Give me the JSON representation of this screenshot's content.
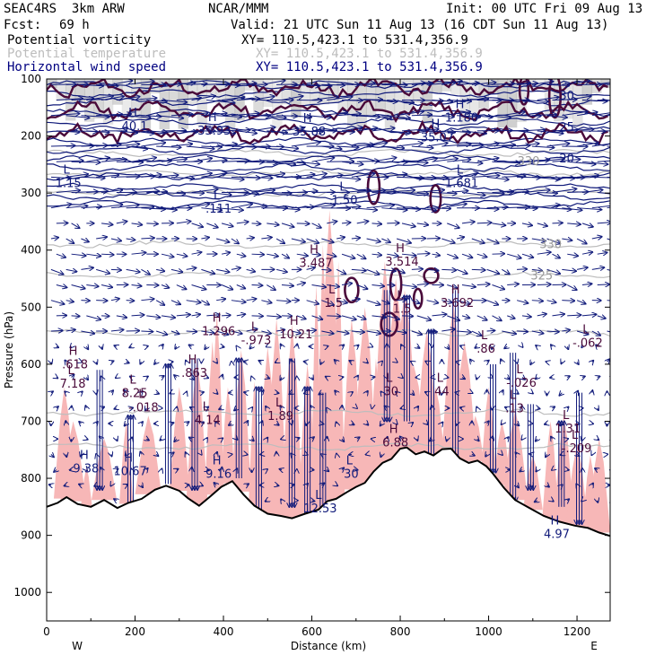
{
  "header": {
    "model": "SEAC4RS  3km ARW",
    "org": "NCAR/MMM",
    "init": "Init: 00 UTC Fri 09 Aug 13",
    "fcst_label": "Fcst:",
    "fcst_value": "69 h",
    "valid": "Valid: 21 UTC Sun 11 Aug 13 (16 CDT Sun 11 Aug 13)"
  },
  "legend": [
    {
      "field": "Potential vorticity",
      "xy": "XY= 110.5,423.1 to 531.4,356.9",
      "color": "#000000"
    },
    {
      "field": "Potential temperature",
      "xy": "XY= 110.5,423.1 to 531.4,356.9",
      "color": "#bdbdbd"
    },
    {
      "field": "Horizontal wind speed",
      "xy": "XY= 110.5,423.1 to 531.4,356.9",
      "color": "#000080"
    }
  ],
  "colors": {
    "pv": "#4a0a3a",
    "theta": "#bdbdbd",
    "wind": "#101a7a",
    "pv_fill": "#f7b7b7",
    "terrain": "#000000"
  },
  "chart_data": {
    "type": "cross-section",
    "xlabel": "Distance (km)",
    "ylabel": "Pressure (hPa)",
    "xlim": [
      0,
      1275
    ],
    "ylim": [
      1050,
      100
    ],
    "x_ticks": [
      0,
      200,
      400,
      600,
      800,
      1000,
      1200
    ],
    "y_ticks": [
      100,
      200,
      300,
      400,
      500,
      600,
      700,
      800,
      900,
      1000
    ],
    "x_end_labels": {
      "left": "W",
      "right": "E"
    },
    "terrain_surface_hPa": [
      [
        0,
        850
      ],
      [
        25,
        843
      ],
      [
        45,
        833
      ],
      [
        70,
        845
      ],
      [
        100,
        850
      ],
      [
        130,
        838
      ],
      [
        160,
        852
      ],
      [
        185,
        843
      ],
      [
        215,
        836
      ],
      [
        245,
        820
      ],
      [
        270,
        813
      ],
      [
        300,
        822
      ],
      [
        320,
        835
      ],
      [
        345,
        848
      ],
      [
        370,
        832
      ],
      [
        395,
        815
      ],
      [
        420,
        805
      ],
      [
        445,
        828
      ],
      [
        470,
        848
      ],
      [
        500,
        862
      ],
      [
        530,
        866
      ],
      [
        555,
        870
      ],
      [
        585,
        862
      ],
      [
        615,
        855
      ],
      [
        635,
        840
      ],
      [
        655,
        836
      ],
      [
        680,
        824
      ],
      [
        700,
        815
      ],
      [
        720,
        808
      ],
      [
        740,
        788
      ],
      [
        760,
        773
      ],
      [
        780,
        766
      ],
      [
        800,
        748
      ],
      [
        815,
        746
      ],
      [
        835,
        758
      ],
      [
        855,
        753
      ],
      [
        875,
        760
      ],
      [
        895,
        749
      ],
      [
        915,
        748
      ],
      [
        935,
        765
      ],
      [
        955,
        773
      ],
      [
        975,
        769
      ],
      [
        995,
        779
      ],
      [
        1010,
        792
      ],
      [
        1035,
        817
      ],
      [
        1060,
        838
      ],
      [
        1090,
        851
      ],
      [
        1125,
        866
      ],
      [
        1160,
        876
      ],
      [
        1195,
        883
      ],
      [
        1225,
        887
      ],
      [
        1250,
        895
      ],
      [
        1275,
        901
      ]
    ],
    "theta_contours": [
      {
        "label": "330",
        "label_x_km": 1115,
        "pressure_hPa": 390
      },
      {
        "label": "325",
        "label_x_km": 1095,
        "pressure_hPa": 445
      },
      {
        "label": "330",
        "label_x_km": 1065,
        "pressure_hPa": 245
      }
    ],
    "wind_speed_labels": [
      "30",
      "25",
      "20"
    ],
    "pv_fill_peaks": [
      [
        40,
        640
      ],
      [
        60,
        700
      ],
      [
        90,
        780
      ],
      [
        130,
        730
      ],
      [
        180,
        700
      ],
      [
        230,
        690
      ],
      [
        300,
        640
      ],
      [
        340,
        590
      ],
      [
        375,
        560
      ],
      [
        385,
        510
      ],
      [
        410,
        640
      ],
      [
        440,
        575
      ],
      [
        470,
        630
      ],
      [
        500,
        570
      ],
      [
        520,
        520
      ],
      [
        555,
        530
      ],
      [
        590,
        600
      ],
      [
        610,
        460
      ],
      [
        625,
        390
      ],
      [
        640,
        330
      ],
      [
        660,
        420
      ],
      [
        690,
        520
      ],
      [
        720,
        500
      ],
      [
        745,
        590
      ],
      [
        765,
        420
      ],
      [
        790,
        450
      ],
      [
        810,
        470
      ],
      [
        830,
        600
      ],
      [
        860,
        540
      ],
      [
        880,
        640
      ],
      [
        910,
        660
      ],
      [
        920,
        490
      ],
      [
        945,
        560
      ],
      [
        970,
        690
      ],
      [
        1000,
        640
      ],
      [
        1030,
        700
      ],
      [
        1060,
        680
      ],
      [
        1100,
        760
      ],
      [
        1140,
        700
      ],
      [
        1170,
        690
      ],
      [
        1200,
        740
      ],
      [
        1230,
        760
      ],
      [
        1250,
        730
      ]
    ],
    "highs_lows": [
      {
        "type": "H",
        "value": ".618",
        "x_km": 60,
        "p_hPa": 598
      },
      {
        "type": "L",
        "value": "7.18",
        "x_km": 55,
        "p_hPa": 632
      },
      {
        "type": "H",
        "value": "9.38",
        "x_km": 85,
        "p_hPa": 780
      },
      {
        "type": "L",
        "value": "8.25",
        "x_km": 195,
        "p_hPa": 648
      },
      {
        "type": "L",
        "value": "-.018",
        "x_km": 215,
        "p_hPa": 673
      },
      {
        "type": "H",
        "value": "10.67",
        "x_km": 185,
        "p_hPa": 785
      },
      {
        "type": "H",
        "value": ".863",
        "x_km": 330,
        "p_hPa": 613
      },
      {
        "type": "L",
        "value": "4.14",
        "x_km": 360,
        "p_hPa": 695
      },
      {
        "type": "H",
        "value": "9.16",
        "x_km": 385,
        "p_hPa": 790
      },
      {
        "type": "H",
        "value": "1.296",
        "x_km": 385,
        "p_hPa": 540
      },
      {
        "type": "L",
        "value": "-.973",
        "x_km": 470,
        "p_hPa": 555
      },
      {
        "type": "H",
        "value": "10.21",
        "x_km": 560,
        "p_hPa": 545
      },
      {
        "type": "L",
        "value": "1.89",
        "x_km": 525,
        "p_hPa": 688
      },
      {
        "type": "L",
        "value": "12.53",
        "x_km": 615,
        "p_hPa": 850
      },
      {
        "type": "H",
        "value": "3.487",
        "x_km": 605,
        "p_hPa": 420
      },
      {
        "type": "L",
        "value": "1.5",
        "x_km": 645,
        "p_hPa": 490
      },
      {
        "type": "L",
        "value": "1.50",
        "x_km": 670,
        "p_hPa": 310
      },
      {
        "type": "L",
        "value": ".111",
        "x_km": 385,
        "p_hPa": 325
      },
      {
        "type": "L",
        "value": "30",
        "x_km": 685,
        "p_hPa": 790
      },
      {
        "type": "H",
        "value": "3.514",
        "x_km": 800,
        "p_hPa": 418
      },
      {
        "type": "L",
        "value": "1.5",
        "x_km": 800,
        "p_hPa": 500
      },
      {
        "type": "L",
        "value": "30",
        "x_km": 775,
        "p_hPa": 645
      },
      {
        "type": "H",
        "value": "6.88",
        "x_km": 785,
        "p_hPa": 735
      },
      {
        "type": "L",
        "value": "44",
        "x_km": 890,
        "p_hPa": 645
      },
      {
        "type": "H",
        "value": "3.692",
        "x_km": 925,
        "p_hPa": 490
      },
      {
        "type": "L",
        "value": ".86",
        "x_km": 990,
        "p_hPa": 570
      },
      {
        "type": "L",
        "value": "-.026",
        "x_km": 1070,
        "p_hPa": 630
      },
      {
        "type": "L",
        "value": ".13",
        "x_km": 1055,
        "p_hPa": 675
      },
      {
        "type": "L",
        "value": "-.062",
        "x_km": 1220,
        "p_hPa": 560
      },
      {
        "type": "L",
        "value": "1.31",
        "x_km": 1175,
        "p_hPa": 710
      },
      {
        "type": "L",
        "value": "-.209",
        "x_km": 1195,
        "p_hPa": 745
      },
      {
        "type": "H",
        "value": "4.97",
        "x_km": 1150,
        "p_hPa": 895
      },
      {
        "type": "H",
        "value": "40.1",
        "x_km": 195,
        "p_hPa": 180
      },
      {
        "type": "H",
        "value": "35.93",
        "x_km": 375,
        "p_hPa": 188
      },
      {
        "type": "H",
        "value": "35.88",
        "x_km": 590,
        "p_hPa": 190
      },
      {
        "type": "H",
        "value": "35.07",
        "x_km": 880,
        "p_hPa": 200
      },
      {
        "type": "H",
        "value": "1.180",
        "x_km": 935,
        "p_hPa": 165
      },
      {
        "type": "L",
        "value": "1.15",
        "x_km": 45,
        "p_hPa": 280
      },
      {
        "type": "L",
        "value": "1.681",
        "x_km": 935,
        "p_hPa": 280
      }
    ],
    "grid": false
  }
}
